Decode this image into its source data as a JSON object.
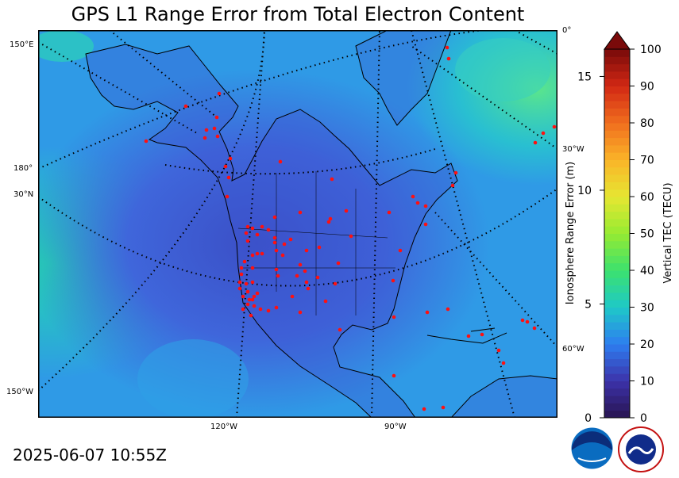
{
  "title": "GPS L1 Range Error from Total Electron Content",
  "timestamp": "2025-06-07 10:55Z",
  "map": {
    "graticule_labels": {
      "left": [
        "150°E",
        "180°",
        "30°N",
        "150°W"
      ],
      "right": [
        "0°",
        "30°W",
        "60°W"
      ],
      "bottom": [
        "120°W",
        "90°W"
      ]
    },
    "colors": {
      "water_high": "#22d8b8",
      "land_low": "#3c56d2",
      "station": "#ff1010"
    }
  },
  "colorbar": {
    "left_label": "Ionosphere Range Error (m)",
    "right_label": "Vertical TEC (TECU)",
    "left_ticks": [
      0,
      5,
      10,
      15
    ],
    "right_ticks": [
      0,
      10,
      20,
      30,
      40,
      50,
      60,
      70,
      80,
      90,
      100
    ],
    "tec_max": 100,
    "range_error_at_max": 16.2
  },
  "logos": {
    "noaa_icon": "noaa-logo-icon",
    "nws_icon": "nws-logo-icon"
  }
}
